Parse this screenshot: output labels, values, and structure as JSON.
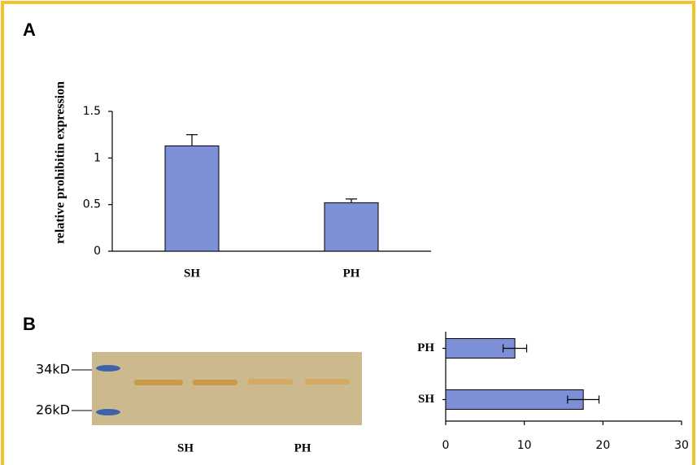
{
  "panels": [
    "A",
    "B"
  ],
  "chart_data": [
    {
      "type": "bar",
      "ylabel": "relative prohibitin expression",
      "categories": [
        "SH",
        "PH"
      ],
      "values": [
        1.13,
        0.52
      ],
      "errors": [
        0.12,
        0.04
      ],
      "color": "#7d8fd6",
      "ylim": [
        0,
        1.5
      ],
      "yticks": [
        0,
        0.5,
        1,
        1.5
      ]
    },
    {
      "type": "barh",
      "categories": [
        "PH",
        "SH"
      ],
      "values": [
        8.8,
        17.5
      ],
      "errors": [
        1.5,
        2
      ],
      "color": "#7d8fd6",
      "xlim": [
        0,
        30
      ],
      "xticks": [
        0,
        10,
        20,
        30
      ]
    }
  ],
  "gel": {
    "markers": [
      "34kD",
      "26kD"
    ],
    "lanes": [
      "SH",
      "PH"
    ]
  }
}
